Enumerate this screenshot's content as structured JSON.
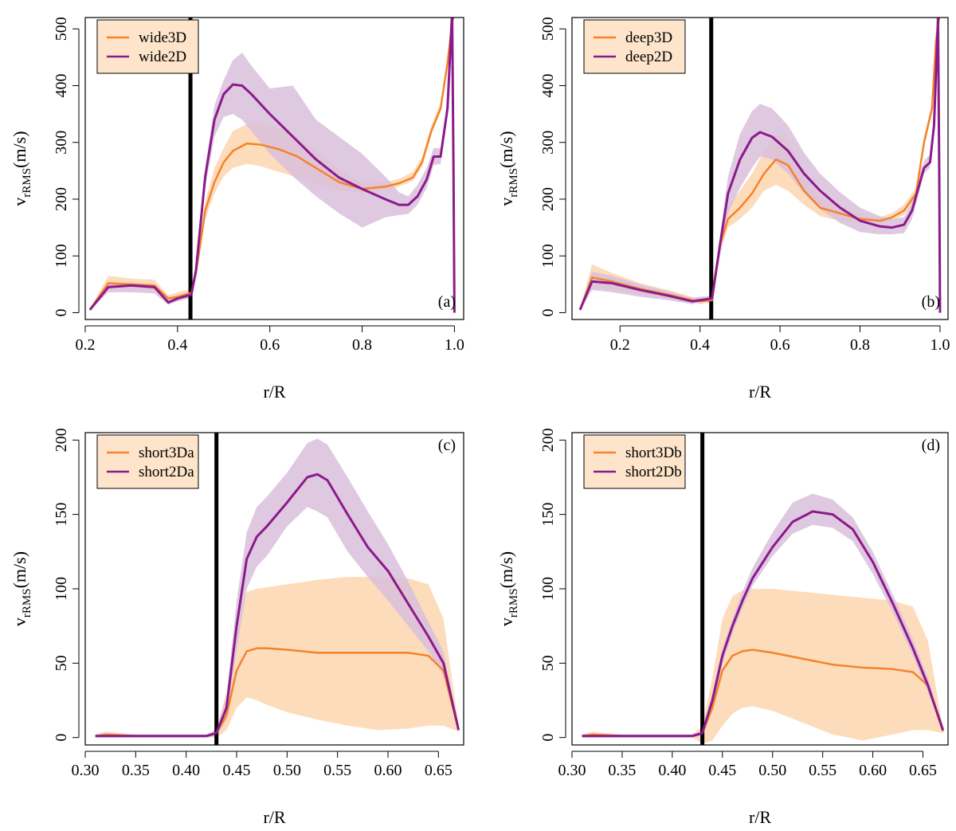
{
  "colors": {
    "orange_line": "#f5832a",
    "orange_band": "#fddcbc",
    "purple_line": "#8b1a8b",
    "purple_band": "#d9bfdc",
    "legend_bg": "#fde4ca",
    "boundary": "#000000"
  },
  "chart_data": [
    {
      "type": "line",
      "panel_label": "(a)",
      "xlabel": "r/R",
      "ylabel_main": "v",
      "ylabel_sub": "rRMS",
      "ylabel_unit": "(m/s)",
      "xlim": [
        0.2,
        1.02
      ],
      "ylim": [
        -12,
        520
      ],
      "xticks": [
        0.2,
        0.4,
        0.6,
        0.8,
        1.0
      ],
      "xtick_labels": [
        "0.2",
        "0.4",
        "0.6",
        "0.8",
        "1.0"
      ],
      "yticks": [
        0,
        100,
        200,
        300,
        400,
        500
      ],
      "ytick_labels": [
        "0",
        "100",
        "200",
        "300",
        "400",
        "500"
      ],
      "boundary_x": 0.428,
      "legend_position": "top-left",
      "series": [
        {
          "name": "wide3D",
          "color_key": "orange",
          "x": [
            0.21,
            0.25,
            0.3,
            0.35,
            0.38,
            0.4,
            0.43,
            0.44,
            0.46,
            0.48,
            0.5,
            0.52,
            0.55,
            0.58,
            0.62,
            0.66,
            0.7,
            0.75,
            0.8,
            0.85,
            0.88,
            0.91,
            0.93,
            0.95,
            0.97,
            0.985,
            0.995,
            1.0
          ],
          "y": [
            5,
            52,
            50,
            48,
            25,
            28,
            35,
            70,
            180,
            230,
            265,
            285,
            298,
            296,
            288,
            275,
            255,
            230,
            218,
            222,
            228,
            238,
            265,
            320,
            360,
            440,
            510,
            530
          ],
          "lower": [
            4,
            44,
            44,
            40,
            20,
            22,
            28,
            60,
            165,
            210,
            240,
            255,
            262,
            258,
            248,
            238,
            225,
            215,
            212,
            215,
            222,
            232,
            258,
            315,
            355,
            435,
            505,
            530
          ],
          "upper": [
            7,
            65,
            60,
            58,
            30,
            36,
            42,
            85,
            195,
            255,
            290,
            320,
            332,
            335,
            325,
            308,
            285,
            252,
            228,
            230,
            236,
            248,
            275,
            330,
            370,
            448,
            515,
            530
          ]
        },
        {
          "name": "wide2D",
          "color_key": "purple",
          "x": [
            0.21,
            0.25,
            0.3,
            0.35,
            0.38,
            0.4,
            0.43,
            0.44,
            0.46,
            0.48,
            0.5,
            0.52,
            0.54,
            0.56,
            0.6,
            0.65,
            0.7,
            0.75,
            0.8,
            0.85,
            0.88,
            0.9,
            0.92,
            0.94,
            0.955,
            0.97,
            0.985,
            0.995,
            0.998,
            1.0
          ],
          "y": [
            5,
            45,
            48,
            45,
            18,
            25,
            32,
            75,
            240,
            340,
            385,
            402,
            400,
            385,
            350,
            310,
            270,
            238,
            218,
            200,
            190,
            190,
            205,
            235,
            275,
            275,
            360,
            530,
            250,
            0
          ],
          "lower": [
            4,
            36,
            36,
            34,
            14,
            20,
            26,
            62,
            220,
            310,
            345,
            350,
            340,
            320,
            280,
            240,
            205,
            175,
            150,
            168,
            172,
            174,
            190,
            220,
            260,
            262,
            350,
            520,
            240,
            0
          ],
          "upper": [
            7,
            52,
            52,
            48,
            22,
            28,
            35,
            85,
            255,
            365,
            410,
            445,
            458,
            435,
            395,
            400,
            340,
            310,
            280,
            240,
            212,
            205,
            225,
            255,
            290,
            290,
            375,
            535,
            260,
            0
          ]
        }
      ]
    },
    {
      "type": "line",
      "panel_label": "(b)",
      "xlabel": "r/R",
      "ylabel_main": "v",
      "ylabel_sub": "rRMS",
      "ylabel_unit": "(m/s)",
      "xlim": [
        0.08,
        1.02
      ],
      "ylim": [
        -12,
        520
      ],
      "xticks": [
        0.2,
        0.4,
        0.6,
        0.8,
        1.0
      ],
      "xtick_labels": [
        "0.2",
        "0.4",
        "0.6",
        "0.8",
        "1.0"
      ],
      "yticks": [
        0,
        100,
        200,
        300,
        400,
        500
      ],
      "ytick_labels": [
        "0",
        "100",
        "200",
        "300",
        "400",
        "500"
      ],
      "boundary_x": 0.428,
      "legend_position": "top-left",
      "series": [
        {
          "name": "deep3D",
          "color_key": "orange",
          "x": [
            0.1,
            0.13,
            0.18,
            0.25,
            0.32,
            0.38,
            0.4,
            0.43,
            0.45,
            0.47,
            0.5,
            0.53,
            0.56,
            0.59,
            0.62,
            0.66,
            0.7,
            0.75,
            0.8,
            0.85,
            0.88,
            0.91,
            0.94,
            0.96,
            0.98,
            0.99,
            1.0
          ],
          "y": [
            5,
            62,
            55,
            42,
            32,
            22,
            20,
            22,
            120,
            165,
            185,
            210,
            245,
            270,
            260,
            215,
            185,
            175,
            165,
            162,
            168,
            180,
            210,
            300,
            360,
            480,
            530
          ],
          "lower": [
            4,
            45,
            40,
            32,
            25,
            18,
            15,
            18,
            105,
            150,
            165,
            185,
            215,
            225,
            215,
            190,
            170,
            162,
            158,
            158,
            162,
            172,
            200,
            290,
            350,
            470,
            530
          ],
          "upper": [
            7,
            85,
            70,
            52,
            40,
            28,
            26,
            28,
            135,
            185,
            215,
            245,
            285,
            315,
            305,
            248,
            205,
            188,
            172,
            168,
            176,
            190,
            220,
            310,
            370,
            490,
            530
          ]
        },
        {
          "name": "deep2D",
          "color_key": "purple",
          "x": [
            0.1,
            0.13,
            0.18,
            0.25,
            0.32,
            0.38,
            0.4,
            0.43,
            0.45,
            0.47,
            0.5,
            0.53,
            0.55,
            0.58,
            0.62,
            0.66,
            0.7,
            0.75,
            0.8,
            0.85,
            0.88,
            0.91,
            0.93,
            0.95,
            0.96,
            0.975,
            0.985,
            0.995,
            0.998,
            1.0
          ],
          "y": [
            5,
            55,
            52,
            40,
            30,
            20,
            22,
            25,
            120,
            210,
            270,
            308,
            318,
            310,
            285,
            245,
            215,
            185,
            162,
            152,
            150,
            155,
            180,
            230,
            255,
            265,
            330,
            520,
            250,
            0
          ],
          "lower": [
            4,
            40,
            36,
            28,
            22,
            15,
            18,
            20,
            100,
            175,
            220,
            255,
            275,
            270,
            245,
            210,
            182,
            158,
            142,
            138,
            138,
            140,
            165,
            218,
            245,
            255,
            320,
            510,
            240,
            0
          ],
          "upper": [
            7,
            72,
            65,
            50,
            38,
            26,
            28,
            30,
            135,
            240,
            315,
            355,
            368,
            360,
            330,
            282,
            245,
            212,
            185,
            170,
            165,
            168,
            195,
            245,
            268,
            278,
            340,
            530,
            260,
            0
          ]
        }
      ]
    },
    {
      "type": "line",
      "panel_label": "(c)",
      "xlabel": "r/R",
      "ylabel_main": "v",
      "ylabel_sub": "rRMS",
      "ylabel_unit": "(m/s)",
      "xlim": [
        0.3,
        0.675
      ],
      "ylim": [
        -5,
        205
      ],
      "xticks": [
        0.3,
        0.35,
        0.4,
        0.45,
        0.5,
        0.55,
        0.6,
        0.65
      ],
      "xtick_labels": [
        "0.30",
        "0.35",
        "0.40",
        "0.45",
        "0.50",
        "0.55",
        "0.60",
        "0.65"
      ],
      "yticks": [
        0,
        50,
        100,
        150,
        200
      ],
      "ytick_labels": [
        "0",
        "50",
        "100",
        "150",
        "200"
      ],
      "boundary_x": 0.43,
      "legend_position": "top-left",
      "series": [
        {
          "name": "short3Da",
          "color_key": "orange",
          "x": [
            0.31,
            0.32,
            0.35,
            0.4,
            0.42,
            0.43,
            0.44,
            0.45,
            0.46,
            0.47,
            0.48,
            0.5,
            0.53,
            0.56,
            0.59,
            0.62,
            0.64,
            0.655,
            0.67
          ],
          "y": [
            1,
            2,
            1,
            1,
            1,
            3,
            15,
            45,
            58,
            60,
            60,
            59,
            57,
            57,
            57,
            57,
            55,
            45,
            5
          ],
          "lower": [
            0,
            0,
            0,
            0,
            0,
            0,
            5,
            20,
            27,
            25,
            22,
            17,
            12,
            8,
            5,
            6,
            8,
            8,
            4
          ],
          "upper": [
            2,
            4,
            2,
            2,
            2,
            6,
            30,
            80,
            98,
            100,
            101,
            103,
            106,
            108,
            108,
            107,
            103,
            80,
            8
          ]
        },
        {
          "name": "short2Da",
          "color_key": "purple",
          "x": [
            0.31,
            0.32,
            0.35,
            0.4,
            0.42,
            0.43,
            0.44,
            0.45,
            0.46,
            0.47,
            0.48,
            0.5,
            0.52,
            0.53,
            0.54,
            0.56,
            0.58,
            0.6,
            0.62,
            0.64,
            0.655,
            0.67
          ],
          "y": [
            1,
            1,
            1,
            1,
            1,
            3,
            20,
            75,
            120,
            135,
            142,
            158,
            175,
            177,
            173,
            150,
            128,
            112,
            90,
            68,
            50,
            5
          ],
          "lower": [
            0,
            0,
            0,
            0,
            0,
            1,
            12,
            58,
            100,
            115,
            122,
            142,
            155,
            152,
            148,
            125,
            108,
            92,
            75,
            58,
            42,
            4
          ],
          "upper": [
            2,
            2,
            2,
            2,
            2,
            5,
            28,
            92,
            138,
            155,
            162,
            178,
            198,
            201,
            197,
            175,
            152,
            130,
            105,
            78,
            58,
            6
          ]
        }
      ]
    },
    {
      "type": "line",
      "panel_label": "(d)",
      "xlabel": "r/R",
      "ylabel_main": "v",
      "ylabel_sub": "rRMS",
      "ylabel_unit": "(m/s)",
      "xlim": [
        0.3,
        0.675
      ],
      "ylim": [
        -5,
        205
      ],
      "xticks": [
        0.3,
        0.35,
        0.4,
        0.45,
        0.5,
        0.55,
        0.6,
        0.65
      ],
      "xtick_labels": [
        "0.30",
        "0.35",
        "0.40",
        "0.45",
        "0.50",
        "0.55",
        "0.60",
        "0.65"
      ],
      "yticks": [
        0,
        50,
        100,
        150,
        200
      ],
      "ytick_labels": [
        "0",
        "50",
        "100",
        "150",
        "200"
      ],
      "boundary_x": 0.43,
      "legend_position": "top-left",
      "series": [
        {
          "name": "short3Db",
          "color_key": "orange",
          "x": [
            0.31,
            0.32,
            0.35,
            0.4,
            0.42,
            0.43,
            0.44,
            0.45,
            0.46,
            0.47,
            0.48,
            0.5,
            0.53,
            0.56,
            0.59,
            0.62,
            0.64,
            0.655,
            0.67
          ],
          "y": [
            1,
            2,
            1,
            1,
            1,
            3,
            20,
            45,
            55,
            58,
            59,
            57,
            53,
            49,
            47,
            46,
            44,
            35,
            4
          ],
          "lower": [
            0,
            0,
            0,
            0,
            0,
            -4,
            -2,
            8,
            16,
            20,
            21,
            18,
            10,
            2,
            -2,
            2,
            5,
            5,
            3
          ],
          "upper": [
            2,
            4,
            2,
            2,
            2,
            8,
            40,
            80,
            95,
            99,
            100,
            100,
            98,
            96,
            94,
            92,
            88,
            65,
            6
          ]
        },
        {
          "name": "short2Db",
          "color_key": "purple",
          "x": [
            0.31,
            0.32,
            0.35,
            0.4,
            0.42,
            0.43,
            0.44,
            0.45,
            0.46,
            0.47,
            0.48,
            0.5,
            0.52,
            0.54,
            0.56,
            0.58,
            0.6,
            0.62,
            0.64,
            0.655,
            0.67
          ],
          "y": [
            1,
            1,
            1,
            1,
            1,
            3,
            25,
            55,
            75,
            92,
            107,
            128,
            145,
            152,
            150,
            140,
            118,
            90,
            60,
            35,
            5
          ],
          "lower": [
            0,
            0,
            0,
            0,
            0,
            1,
            20,
            50,
            70,
            87,
            102,
            122,
            137,
            143,
            141,
            132,
            110,
            84,
            55,
            30,
            4
          ],
          "upper": [
            2,
            2,
            2,
            2,
            2,
            5,
            30,
            60,
            80,
            98,
            114,
            138,
            158,
            164,
            160,
            148,
            125,
            96,
            66,
            40,
            6
          ]
        }
      ]
    }
  ]
}
